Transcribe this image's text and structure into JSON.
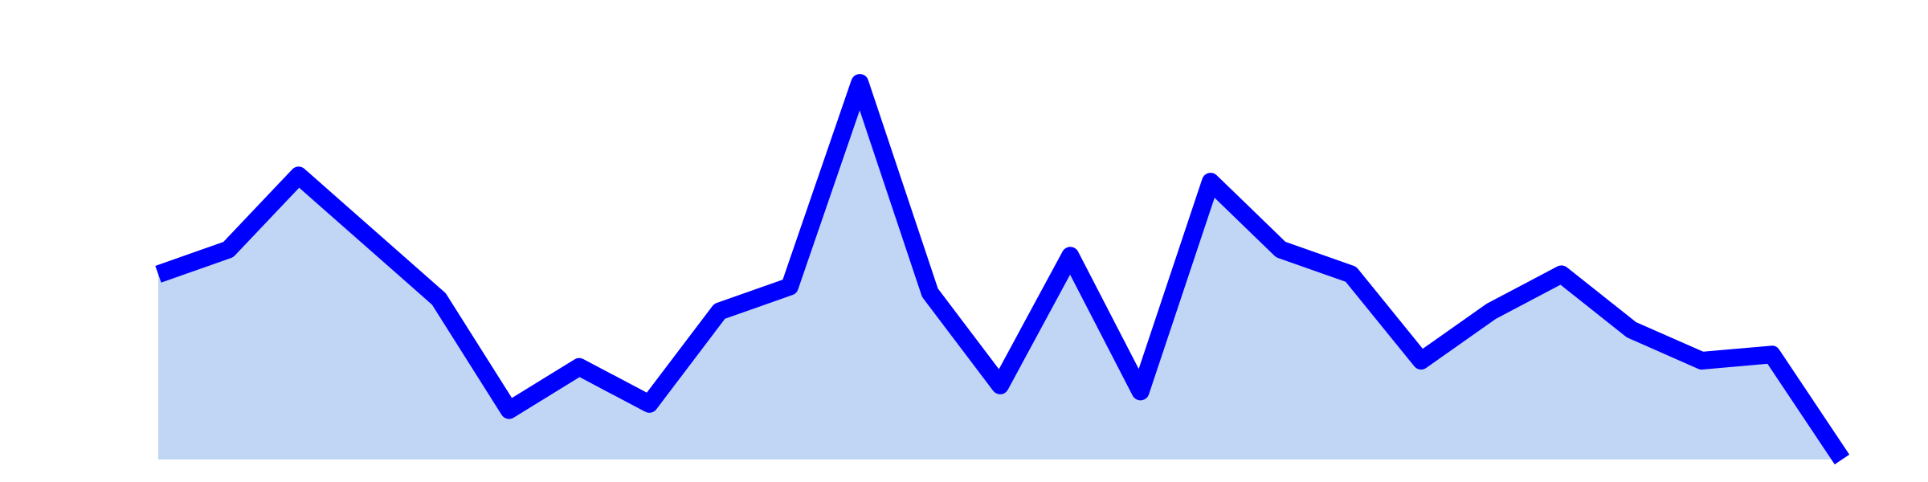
{
  "chart_data": {
    "type": "area",
    "title": "",
    "xlabel": "",
    "ylabel": "",
    "x": [
      0,
      1,
      2,
      3,
      4,
      5,
      6,
      7,
      8,
      9,
      10,
      11,
      12,
      13,
      14,
      15,
      16,
      17,
      18,
      19,
      20,
      21,
      22,
      23,
      24
    ],
    "series": [
      {
        "values": [
          30,
          34,
          46,
          36,
          26,
          8,
          15,
          9,
          24,
          28,
          61,
          27,
          12,
          33,
          11,
          45,
          34,
          30,
          16,
          24,
          30,
          21,
          16,
          17,
          0
        ]
      }
    ],
    "ylim": [
      0,
      64
    ],
    "grid": false,
    "axes_visible": false,
    "colors": {
      "line": "#0000ff",
      "fill": "#c1d5f5"
    }
  }
}
